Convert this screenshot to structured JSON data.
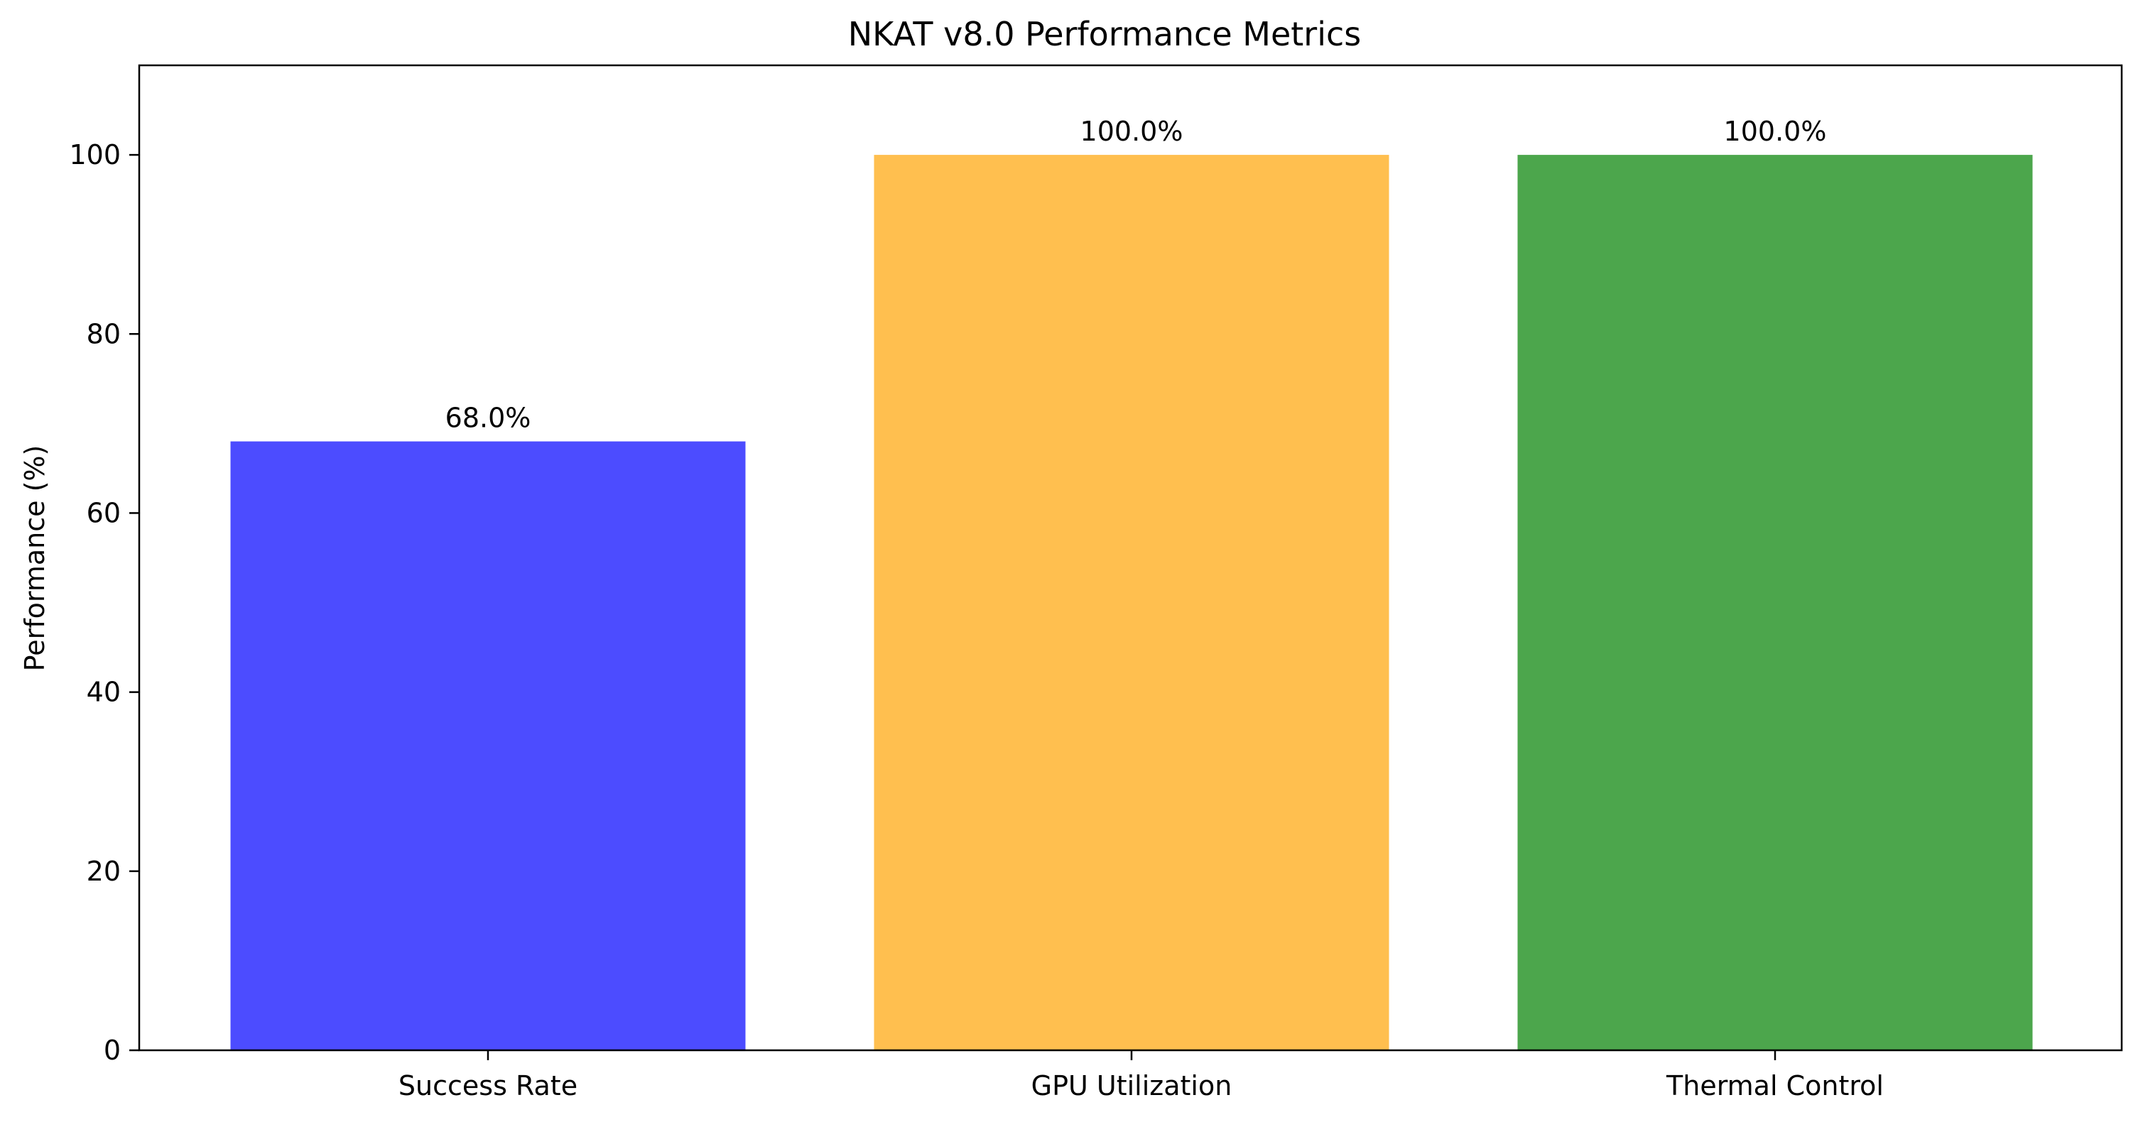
{
  "chart_data": {
    "type": "bar",
    "title": "NKAT v8.0 Performance Metrics",
    "xlabel": "",
    "ylabel": "Performance (%)",
    "categories": [
      "Success Rate",
      "GPU Utilization",
      "Thermal Control"
    ],
    "values": [
      68.0,
      100.0,
      100.0
    ],
    "data_labels": [
      "68.0%",
      "100.0%",
      "100.0%"
    ],
    "colors": [
      "#4c4cff",
      "#ffbf4f",
      "#4ca64c"
    ],
    "ylim": [
      0,
      110
    ],
    "yticks": [
      0,
      20,
      40,
      60,
      80,
      100
    ],
    "ytick_labels": [
      "0",
      "20",
      "40",
      "60",
      "80",
      "100"
    ],
    "grid": false,
    "legend": "none"
  }
}
